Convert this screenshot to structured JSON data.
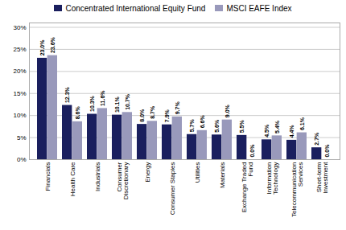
{
  "chart_data": {
    "type": "bar",
    "categories": [
      "Financials",
      "Health Care",
      "Industrials",
      "Consumer\nDiscretionary",
      "Energy",
      "Consumer Staples",
      "Utilities",
      "Materials",
      "Exchange Traded\nFund",
      "Information\nTechnology",
      "Telecommunication\nServices",
      "Short-term\nInvestment"
    ],
    "series": [
      {
        "name": "Concentrated International Equity Fund",
        "color": "#1a1f5e",
        "values": [
          23.0,
          12.3,
          10.3,
          10.1,
          8.0,
          7.9,
          5.7,
          5.6,
          5.5,
          4.5,
          4.4,
          2.7
        ],
        "value_labels": [
          "23.0%",
          "12.3%",
          "10.3%",
          "10.1%",
          "8.0%",
          "7.9%",
          "5.7%",
          "5.6%",
          "5.5%",
          "4.5%",
          "4.4%",
          "2.7%"
        ]
      },
      {
        "name": "MSCI EAFE Index",
        "color": "#9999bb",
        "values": [
          23.6,
          8.6,
          11.6,
          10.7,
          8.7,
          9.7,
          6.6,
          9.0,
          0.0,
          5.4,
          6.1,
          0.0
        ],
        "value_labels": [
          "23.6%",
          "8.6%",
          "11.6%",
          "10.7%",
          "8.7%",
          "9.7%",
          "6.6%",
          "9.0%",
          "0.0%",
          "5.4%",
          "6.1%",
          "0.0%"
        ]
      }
    ],
    "ylim": [
      0,
      31
    ],
    "yticks": [
      {
        "value": 0,
        "label": "0%"
      },
      {
        "value": 5,
        "label": "5%"
      },
      {
        "value": 10,
        "label": "10%"
      },
      {
        "value": 15,
        "label": "15%"
      },
      {
        "value": 20,
        "label": "20%"
      },
      {
        "value": 25,
        "label": "25%"
      },
      {
        "value": 30,
        "label": "30%"
      }
    ],
    "grid": true,
    "legend": "top",
    "data_labels": true
  }
}
